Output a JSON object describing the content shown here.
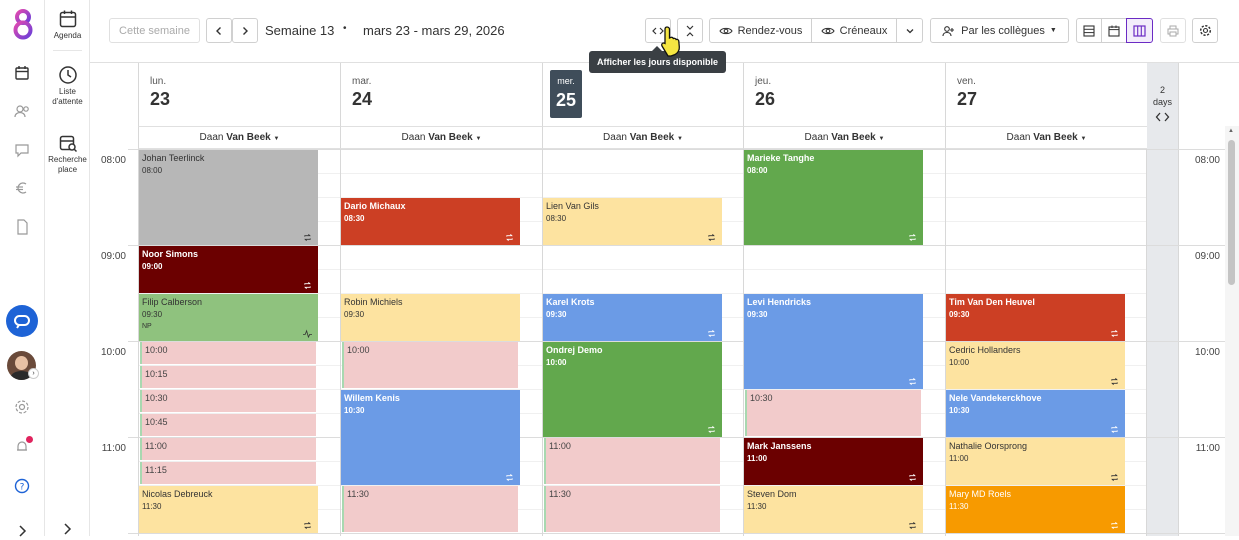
{
  "colors": {
    "gray": "#b7b7b7",
    "red": "#cc3f24",
    "darkred": "#6b0000",
    "lightgreen": "#8fc27e",
    "yellow": "#fde3a0",
    "blue": "#6b9be6",
    "green": "#62a84d",
    "orange": "#f79a00",
    "pink": "#f2cbcb",
    "today_bg": "#3f4d5a",
    "active_view": "#6b2bc4"
  },
  "sidebar": {
    "agenda": "Agenda",
    "waitlist": "Liste d'attente",
    "search_place": "Recherche place"
  },
  "toolbar": {
    "this_week": "Cette semaine",
    "week_label": "Semaine 13",
    "dot": "•",
    "date_range": "mars 23 - mars 29, 2026",
    "rendezvous": "Rendez-vous",
    "creneaux": "Créneaux",
    "par_collegues": "Par les collègues",
    "tooltip": "Afficher les jours disponible"
  },
  "days": [
    {
      "name": "lun.",
      "date": "23",
      "practitioner_first": "Daan",
      "practitioner_last": "Van Beek"
    },
    {
      "name": "mar.",
      "date": "24",
      "practitioner_first": "Daan",
      "practitioner_last": "Van Beek"
    },
    {
      "name": "mer.",
      "date": "25",
      "practitioner_first": "Daan",
      "practitioner_last": "Van Beek"
    },
    {
      "name": "jeu.",
      "date": "26",
      "practitioner_first": "Daan",
      "practitioner_last": "Van Beek"
    },
    {
      "name": "ven.",
      "date": "27",
      "practitioner_first": "Daan",
      "practitioner_last": "Van Beek"
    }
  ],
  "two_days": {
    "count": "2",
    "label": "days"
  },
  "hours": [
    "08:00",
    "09:00",
    "10:00",
    "11:00"
  ],
  "events": {
    "d0": [
      {
        "name": "Johan Teerlinck",
        "time": "08:00"
      },
      {
        "name": "Noor Simons",
        "time": "09:00"
      },
      {
        "name": "Filip Calberson",
        "time": "09:30",
        "note": "NP"
      },
      {
        "slot": "10:00"
      },
      {
        "slot": "10:15"
      },
      {
        "slot": "10:30"
      },
      {
        "slot": "10:45"
      },
      {
        "slot": "11:00"
      },
      {
        "slot": "11:15"
      },
      {
        "name": "Nicolas Debreuck",
        "time": "11:30"
      }
    ],
    "d1": [
      {
        "name": "Dario Michaux",
        "time": "08:30"
      },
      {
        "name": "Robin Michiels",
        "time": "09:30"
      },
      {
        "slot": "10:00"
      },
      {
        "name": "Willem Kenis",
        "time": "10:30"
      },
      {
        "slot": "11:30"
      }
    ],
    "d2": [
      {
        "name": "Lien Van Gils",
        "time": "08:30"
      },
      {
        "name": "Karel Krots",
        "time": "09:30"
      },
      {
        "name": "Ondrej Demo",
        "time": "10:00"
      },
      {
        "slot": "11:00"
      },
      {
        "slot": "11:30"
      }
    ],
    "d3": [
      {
        "name": "Marieke Tanghe",
        "time": "08:00"
      },
      {
        "name": "Levi Hendricks",
        "time": "09:30"
      },
      {
        "slot": "10:30"
      },
      {
        "name": "Mark Janssens",
        "time": "11:00"
      },
      {
        "name": "Steven Dom",
        "time": "11:30"
      }
    ],
    "d4": [
      {
        "name": "Tim Van Den Heuvel",
        "time": "09:30"
      },
      {
        "name": "Cedric Hollanders",
        "time": "10:00"
      },
      {
        "name": "Nele Vandekerckhove",
        "time": "10:30"
      },
      {
        "name": "Nathalie Oorsprong",
        "time": "11:00"
      },
      {
        "name": "Mary MD Roels",
        "time": "11:30"
      }
    ]
  }
}
